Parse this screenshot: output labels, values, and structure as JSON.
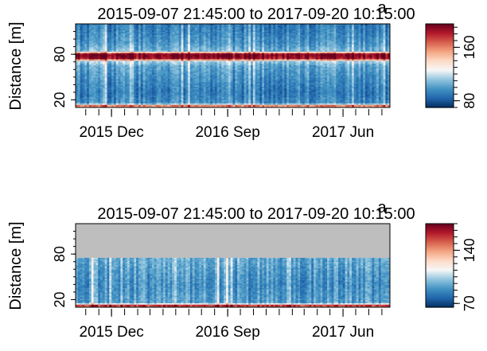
{
  "chart_data": [
    {
      "type": "heatmap",
      "title": "2015-09-07 21:45:00 to 2017-09-20 10:15:00",
      "panel_tag": "a",
      "xlabel": "",
      "ylabel": "Distance [m]",
      "x_range": [
        "2015-09-07",
        "2017-09-20"
      ],
      "x_tick_labels": [
        {
          "date": "2015-12-01",
          "label": "2015 Dec"
        },
        {
          "date": "2016-09-01",
          "label": "2016 Sep"
        },
        {
          "date": "2017-06-01",
          "label": "2017 Jun"
        }
      ],
      "y_range": [
        10,
        120
      ],
      "y_ticks": [
        20,
        80
      ],
      "colorbar": {
        "range": [
          70,
          195
        ],
        "ticks": [
          80,
          160
        ],
        "palette": [
          "#053061",
          "#2166ac",
          "#4393c3",
          "#92c5de",
          "#f7f7f7",
          "#fddbc7",
          "#f4a582",
          "#d6604d",
          "#b2182b",
          "#67001f"
        ]
      },
      "value_profile": [
        {
          "distance": 10,
          "value": 152
        },
        {
          "distance": 13,
          "value": 160
        },
        {
          "distance": 14,
          "value": 120
        },
        {
          "distance": 17,
          "value": 95
        },
        {
          "distance": 30,
          "value": 90
        },
        {
          "distance": 50,
          "value": 96
        },
        {
          "distance": 65,
          "value": 102
        },
        {
          "distance": 72,
          "value": 116
        },
        {
          "distance": 74,
          "value": 182
        },
        {
          "distance": 80,
          "value": 192
        },
        {
          "distance": 82,
          "value": 180
        },
        {
          "distance": 84,
          "value": 108
        },
        {
          "distance": 95,
          "value": 98
        },
        {
          "distance": 112,
          "value": 92
        },
        {
          "distance": 120,
          "value": 90
        }
      ],
      "masked_above": null
    },
    {
      "type": "heatmap",
      "title": "2015-09-07 21:45:00 to 2017-09-20 10:15:00",
      "panel_tag": "a",
      "xlabel": "",
      "ylabel": "Distance [m]",
      "x_range": [
        "2015-09-07",
        "2017-09-20"
      ],
      "x_tick_labels": [
        {
          "date": "2015-12-01",
          "label": "2015 Dec"
        },
        {
          "date": "2016-09-01",
          "label": "2016 Sep"
        },
        {
          "date": "2017-06-01",
          "label": "2017 Jun"
        }
      ],
      "y_range": [
        10,
        120
      ],
      "y_ticks": [
        20,
        80
      ],
      "colorbar": {
        "range": [
          65,
          175
        ],
        "ticks": [
          70,
          140
        ],
        "palette": [
          "#053061",
          "#2166ac",
          "#4393c3",
          "#92c5de",
          "#f7f7f7",
          "#fddbc7",
          "#f4a582",
          "#d6604d",
          "#b2182b",
          "#67001f"
        ]
      },
      "value_profile": [
        {
          "distance": 10,
          "value": 150
        },
        {
          "distance": 13,
          "value": 158
        },
        {
          "distance": 14,
          "value": 120
        },
        {
          "distance": 17,
          "value": 92
        },
        {
          "distance": 40,
          "value": 88
        },
        {
          "distance": 75,
          "value": 95
        }
      ],
      "masked_above": 75,
      "mask_color": "#bebebe"
    }
  ]
}
